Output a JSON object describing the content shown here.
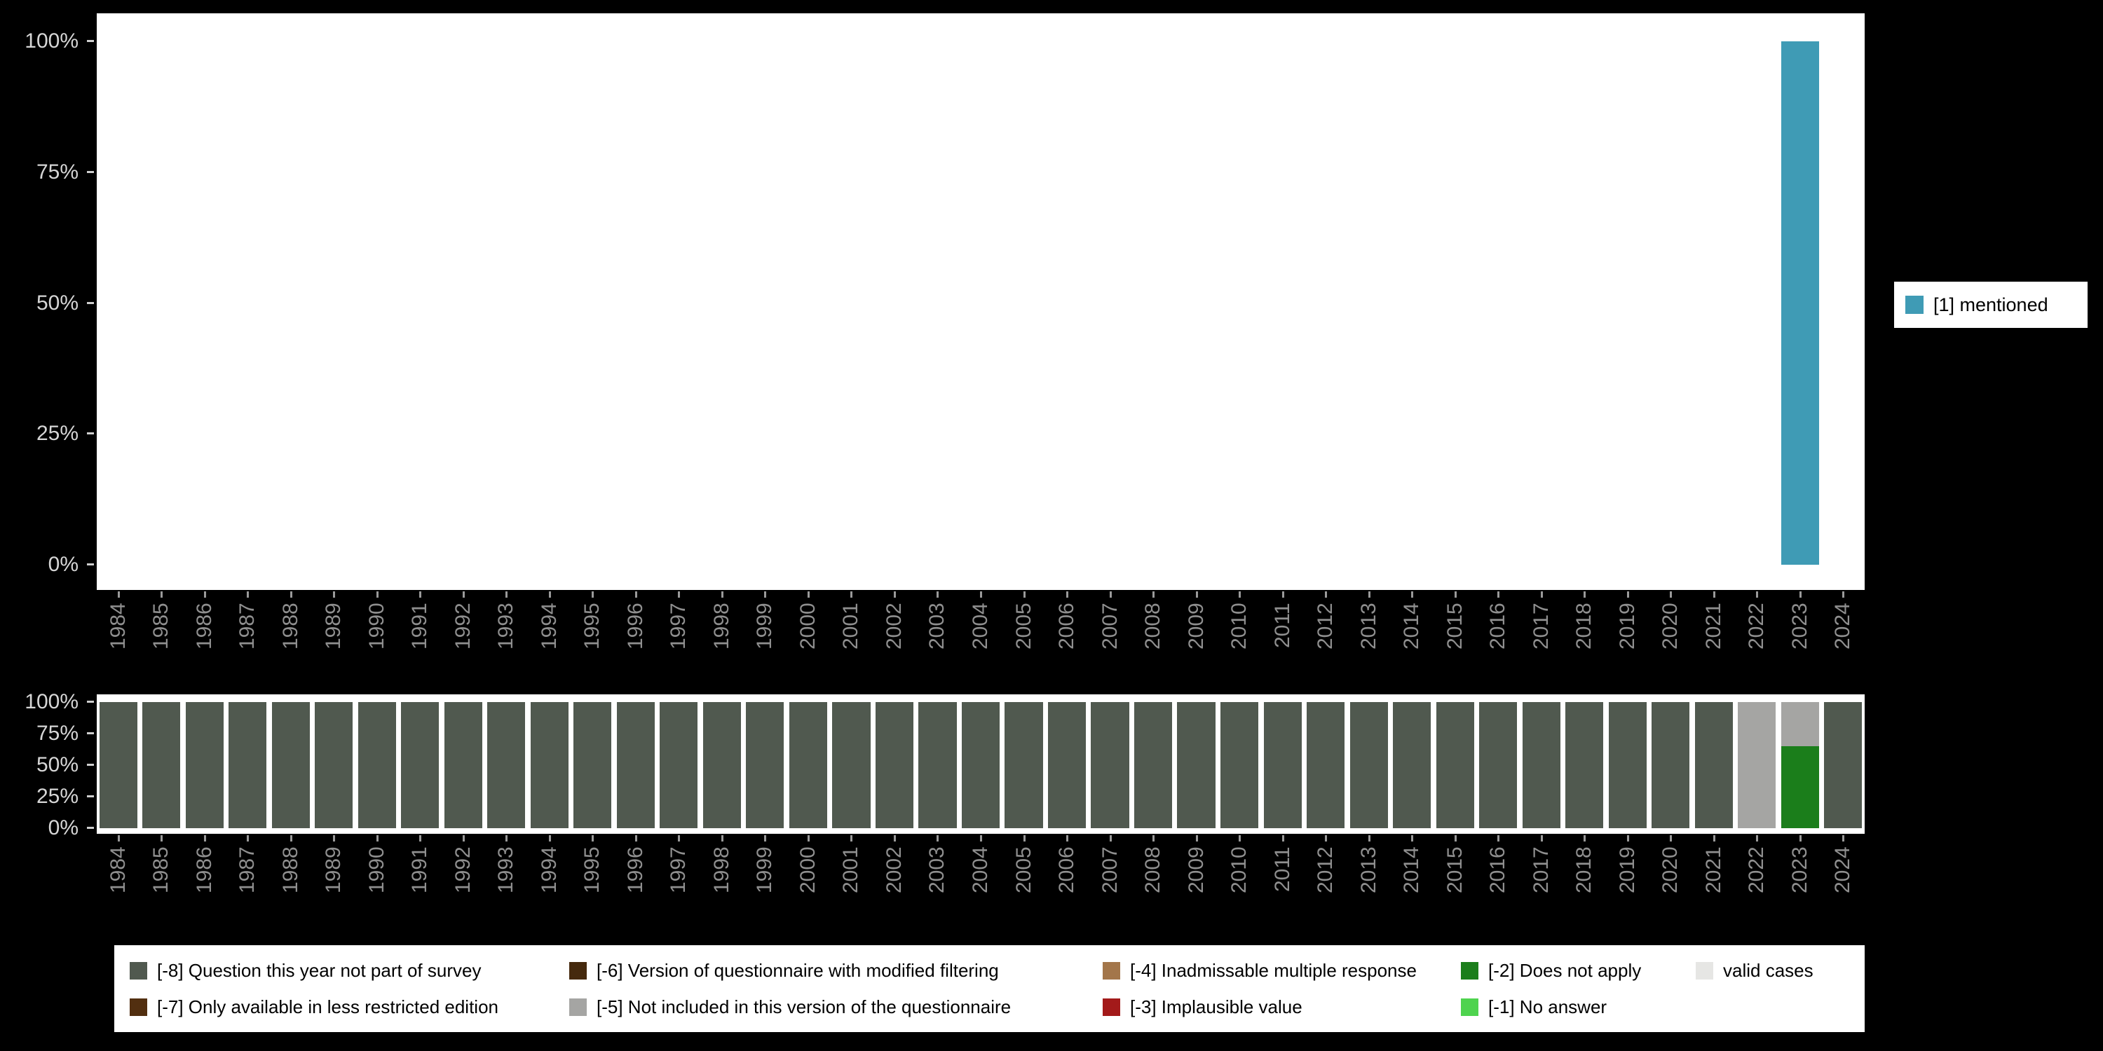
{
  "page": {
    "background": "#000000",
    "top_legend": {
      "label": "[1] mentioned",
      "color": "#3f9bb5"
    }
  },
  "chart_data": [
    {
      "type": "bar",
      "title": "",
      "xlabel": "",
      "ylabel": "",
      "ylim": [
        0,
        100
      ],
      "grid": false,
      "legend_position": "right",
      "yticks": [
        {
          "label": "0%",
          "value": 0
        },
        {
          "label": "25%",
          "value": 25
        },
        {
          "label": "50%",
          "value": 50
        },
        {
          "label": "75%",
          "value": 75
        },
        {
          "label": "100%",
          "value": 100
        }
      ],
      "categories": [
        "1984",
        "1985",
        "1986",
        "1987",
        "1988",
        "1989",
        "1990",
        "1991",
        "1992",
        "1993",
        "1994",
        "1995",
        "1996",
        "1997",
        "1998",
        "1999",
        "2000",
        "2001",
        "2002",
        "2003",
        "2004",
        "2005",
        "2006",
        "2007",
        "2008",
        "2009",
        "2010",
        "2011",
        "2012",
        "2013",
        "2014",
        "2015",
        "2016",
        "2017",
        "2018",
        "2019",
        "2020",
        "2021",
        "2022",
        "2023",
        "2024"
      ],
      "legend": [
        {
          "label": "[1] mentioned",
          "color": "#3f9bb5"
        }
      ],
      "series": [
        {
          "name": "[1] mentioned",
          "color": "#3f9bb5",
          "values": [
            0,
            0,
            0,
            0,
            0,
            0,
            0,
            0,
            0,
            0,
            0,
            0,
            0,
            0,
            0,
            0,
            0,
            0,
            0,
            0,
            0,
            0,
            0,
            0,
            0,
            0,
            0,
            0,
            0,
            0,
            0,
            0,
            0,
            0,
            0,
            0,
            0,
            0,
            0,
            100,
            0
          ]
        }
      ]
    },
    {
      "type": "stacked-bar",
      "title": "",
      "xlabel": "",
      "ylabel": "",
      "ylim": [
        0,
        100
      ],
      "grid": false,
      "legend_position": "bottom",
      "yticks": [
        {
          "label": "0%",
          "value": 0
        },
        {
          "label": "25%",
          "value": 25
        },
        {
          "label": "50%",
          "value": 50
        },
        {
          "label": "75%",
          "value": 75
        },
        {
          "label": "100%",
          "value": 100
        }
      ],
      "categories": [
        "1984",
        "1985",
        "1986",
        "1987",
        "1988",
        "1989",
        "1990",
        "1991",
        "1992",
        "1993",
        "1994",
        "1995",
        "1996",
        "1997",
        "1998",
        "1999",
        "2000",
        "2001",
        "2002",
        "2003",
        "2004",
        "2005",
        "2006",
        "2007",
        "2008",
        "2009",
        "2010",
        "2011",
        "2012",
        "2013",
        "2014",
        "2015",
        "2016",
        "2017",
        "2018",
        "2019",
        "2020",
        "2021",
        "2022",
        "2023",
        "2024"
      ],
      "series": [
        {
          "name": "[-8] Question this year not part of survey",
          "color": "#50594f",
          "values": [
            100,
            100,
            100,
            100,
            100,
            100,
            100,
            100,
            100,
            100,
            100,
            100,
            100,
            100,
            100,
            100,
            100,
            100,
            100,
            100,
            100,
            100,
            100,
            100,
            100,
            100,
            100,
            100,
            100,
            100,
            100,
            100,
            100,
            100,
            100,
            100,
            100,
            100,
            0,
            0,
            100
          ]
        },
        {
          "name": "[-2] Does not apply",
          "color": "#1b7e1b",
          "values": [
            0,
            0,
            0,
            0,
            0,
            0,
            0,
            0,
            0,
            0,
            0,
            0,
            0,
            0,
            0,
            0,
            0,
            0,
            0,
            0,
            0,
            0,
            0,
            0,
            0,
            0,
            0,
            0,
            0,
            0,
            0,
            0,
            0,
            0,
            0,
            0,
            0,
            0,
            0,
            65,
            0
          ]
        },
        {
          "name": "[-5] Not included in this version of the questionnaire",
          "color": "#a5a5a3",
          "values": [
            0,
            0,
            0,
            0,
            0,
            0,
            0,
            0,
            0,
            0,
            0,
            0,
            0,
            0,
            0,
            0,
            0,
            0,
            0,
            0,
            0,
            0,
            0,
            0,
            0,
            0,
            0,
            0,
            0,
            0,
            0,
            0,
            0,
            0,
            0,
            0,
            0,
            0,
            100,
            35,
            0
          ]
        }
      ]
    }
  ],
  "missing_legend": {
    "items": [
      {
        "label": "[-8] Question this year not part of survey",
        "color": "#50594f"
      },
      {
        "label": "[-7] Only available in less restricted edition",
        "color": "#522f10"
      },
      {
        "label": "[-6] Version of questionnaire with modified filtering",
        "color": "#45290d"
      },
      {
        "label": "[-5] Not included in this version of the questionnaire",
        "color": "#a5a5a3"
      },
      {
        "label": "[-4] Inadmissable multiple response",
        "color": "#a3764a"
      },
      {
        "label": "[-3] Implausible value",
        "color": "#a31a1a"
      },
      {
        "label": "[-2] Does not apply",
        "color": "#1b7e1b"
      },
      {
        "label": "[-1] No answer",
        "color": "#4ed34e"
      },
      {
        "label": "valid cases",
        "color": "#e6e6e4"
      }
    ]
  }
}
